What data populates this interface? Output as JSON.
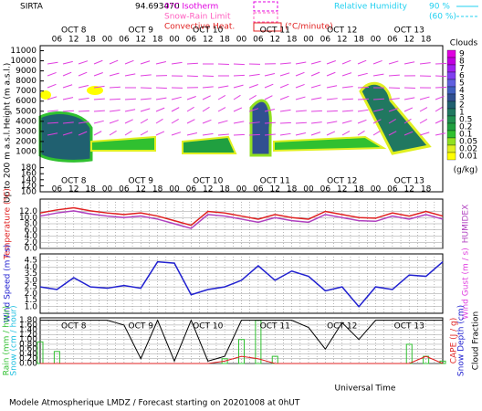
{
  "header": {
    "site": "SIRTA",
    "coordinate": "94.693470",
    "isotherm": "0°C Isotherm",
    "snow_rain": "Snow-Rain Limit",
    "convective": "Convective Heat.",
    "convective_unit": "(°C/minute)",
    "rh": "Relative Humidity",
    "rh_high": "90 %",
    "rh_low": "(60 %)"
  },
  "time_axis": {
    "days": [
      "OCT 8",
      "OCT 9",
      "OCT 10",
      "OCT 11",
      "OCT 12",
      "OCT 13"
    ],
    "hours": [
      "00",
      "06",
      "12",
      "18"
    ],
    "xlabel": "Universal Time"
  },
  "footer": "Modele Atmospherique LMDZ / Forecast starting on 20201008 at 0hUT",
  "chart_data": [
    {
      "type": "cloud",
      "ylabel": "Height (m a.s.l.)",
      "ylabel2": "Up to 200 m a.s.l.",
      "ylim": [
        0,
        11500
      ],
      "yticks": [
        1000,
        2000,
        3000,
        4000,
        5000,
        6000,
        7000,
        8000,
        9000,
        10000,
        11000
      ],
      "low_ylim": [
        100,
        200
      ],
      "low_yticks": [
        100,
        120,
        140,
        160,
        180
      ],
      "colorbar": {
        "title": "Clouds",
        "unit": "(g/kg)",
        "ticks": [
          9,
          8,
          7,
          6,
          5,
          4,
          3,
          2,
          1,
          0.5,
          0.2,
          0.1,
          0.05,
          0.02,
          0.01
        ],
        "colors": [
          "#e000e0",
          "#c000e0",
          "#a020f0",
          "#8040f0",
          "#6060e0",
          "#4060c0",
          "#305090",
          "#206070",
          "#207860",
          "#209050",
          "#20a040",
          "#30c030",
          "#90e020",
          "#e0f020",
          "#ffff00"
        ]
      }
    },
    {
      "type": "line",
      "ylim": [
        0,
        16
      ],
      "yticks": [
        {
          "value": 0,
          "label": "0.0"
        },
        {
          "value": 2,
          "label": "2.0"
        },
        {
          "value": 4,
          "label": "4.0"
        },
        {
          "value": 6,
          "label": "6.0"
        },
        {
          "value": 8,
          "label": "8.0"
        },
        {
          "value": 10,
          "label": "10.0"
        },
        {
          "value": 12,
          "label": "12.0"
        }
      ],
      "series": [
        {
          "name": "Temperature (°C)",
          "color": "#e02020",
          "side": "left",
          "values": [
            11.5,
            12.5,
            13.2,
            12.2,
            11.5,
            11,
            11.5,
            10.5,
            9,
            7.5,
            12,
            11.5,
            10.5,
            9.5,
            11,
            10,
            9.5,
            12,
            11,
            10,
            9.8,
            11.5,
            10.5,
            12,
            10.5
          ]
        },
        {
          "name": "HUMIDEX",
          "color": "#b040c0",
          "side": "right",
          "values": [
            10.5,
            11.5,
            12.2,
            11.2,
            10.5,
            10,
            10.5,
            9.5,
            8,
            6.5,
            11,
            10.5,
            9.5,
            8.5,
            10,
            9,
            8.5,
            11,
            10,
            9,
            8.8,
            10.5,
            9.5,
            11,
            9.5
          ]
        }
      ]
    },
    {
      "type": "line",
      "ylim": [
        0.5,
        5
      ],
      "yticks": [
        {
          "value": 1,
          "label": "1.0"
        },
        {
          "value": 1.5,
          "label": "1.5"
        },
        {
          "value": 2,
          "label": "2.0"
        },
        {
          "value": 2.5,
          "label": "2.5"
        },
        {
          "value": 3,
          "label": "3.0"
        },
        {
          "value": 3.5,
          "label": "3.5"
        },
        {
          "value": 4,
          "label": "4.0"
        },
        {
          "value": 4.5,
          "label": "4.5"
        }
      ],
      "right_label": "Wind Gust (m / s)",
      "series": [
        {
          "name": "Wind Speed (m / s)",
          "color": "#2020d0",
          "side": "left",
          "values": [
            2.5,
            2.3,
            3.2,
            2.5,
            2.4,
            2.6,
            2.4,
            4.4,
            4.3,
            1.9,
            2.3,
            2.5,
            3,
            4.1,
            3,
            3.7,
            3.3,
            2.2,
            2.5,
            1,
            2.5,
            2.3,
            3.4,
            3.3,
            4.4
          ]
        }
      ]
    },
    {
      "type": "mixed",
      "ylim": [
        0,
        1.9
      ],
      "yticks": [
        {
          "value": 0,
          "label": "0.00"
        },
        {
          "value": 0.2,
          "label": "0.20"
        },
        {
          "value": 0.4,
          "label": "0.40"
        },
        {
          "value": 0.6,
          "label": "0.60"
        },
        {
          "value": 0.8,
          "label": "0.80"
        },
        {
          "value": 1,
          "label": "1.00"
        },
        {
          "value": 1.2,
          "label": "1.20"
        },
        {
          "value": 1.4,
          "label": "1.40"
        },
        {
          "value": 1.6,
          "label": "1.60"
        },
        {
          "value": 1.8,
          "label": "1.80"
        }
      ],
      "left_labels": [
        "Rain (mm / hour)",
        "Snow (cm / hour)"
      ],
      "right_labels": [
        "Snow Depth (cm)"
      ],
      "series": [
        {
          "name": "Rain",
          "mark": "bar",
          "color": "#30c030",
          "values": [
            0.9,
            0.5,
            0,
            0,
            0,
            0,
            0,
            0,
            0,
            0,
            0,
            0.2,
            1,
            1.8,
            0.3,
            0,
            0,
            0,
            0,
            0,
            0,
            0,
            0.8,
            0.3,
            0.1
          ]
        },
        {
          "name": "CAPE (J / g)",
          "mark": "line",
          "color": "#e02020",
          "values": [
            0,
            0,
            0,
            0,
            0,
            0,
            0,
            0,
            0,
            0,
            0,
            0.1,
            0.3,
            0.2,
            0,
            0,
            0,
            0,
            0,
            0,
            0,
            0,
            0,
            0.3,
            0
          ]
        },
        {
          "name": "Cloud Fraction",
          "mark": "line",
          "color": "#000000",
          "values": [
            1.8,
            1.8,
            1.8,
            1.8,
            1.8,
            1.6,
            0.2,
            1.8,
            0.1,
            1.8,
            0.1,
            0.3,
            1.8,
            1.8,
            1.8,
            1.8,
            1.5,
            0.6,
            1.7,
            1,
            1.8,
            1.8,
            1.8,
            1.8,
            1.8
          ]
        }
      ]
    }
  ]
}
